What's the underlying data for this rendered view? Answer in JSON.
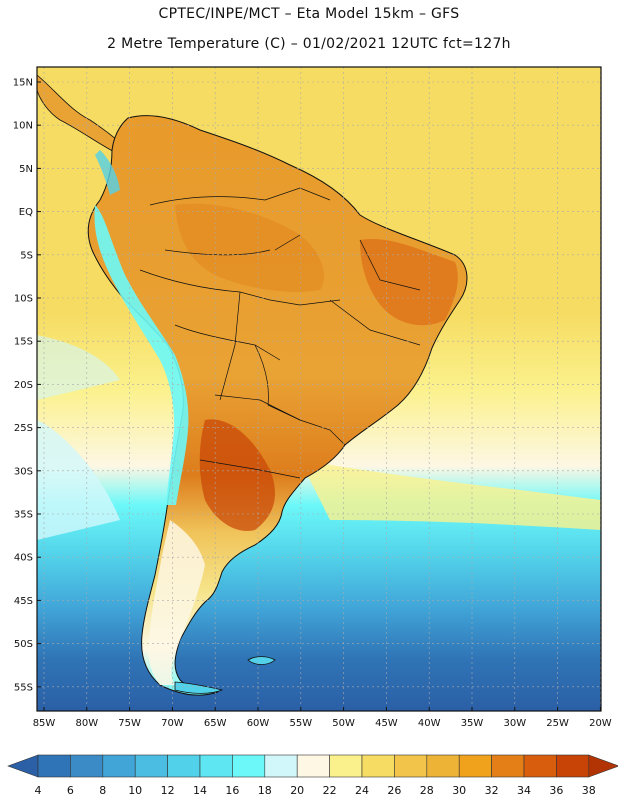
{
  "header": {
    "line1": "CPTEC/INPE/MCT –  Eta Model 15km – GFS",
    "line2": "2 Metre Temperature (C) – 01/02/2021 12UTC fct=127h"
  },
  "map": {
    "lat_labels": [
      "15N",
      "10N",
      "5N",
      "EQ",
      "5S",
      "10S",
      "15S",
      "20S",
      "25S",
      "30S",
      "35S",
      "40S",
      "45S",
      "50S",
      "55S"
    ],
    "lon_labels": [
      "85W",
      "80W",
      "75W",
      "70W",
      "65W",
      "60W",
      "55W",
      "50W",
      "45W",
      "40W",
      "35W",
      "30W",
      "25W",
      "20W"
    ]
  },
  "colorbar": {
    "labels": [
      "4",
      "6",
      "8",
      "10",
      "12",
      "14",
      "16",
      "18",
      "20",
      "22",
      "24",
      "26",
      "28",
      "30",
      "32",
      "34",
      "36",
      "38"
    ],
    "colors": [
      "#2b5fa6",
      "#2f74b6",
      "#3b8cc6",
      "#41a5d8",
      "#4bbde2",
      "#52d2ea",
      "#5ee6f2",
      "#6cf8f8",
      "#d2f7fb",
      "#fdf7e4",
      "#fbf18c",
      "#f6dc62",
      "#f2c54a",
      "#ecb337",
      "#f0a21d",
      "#e47f18",
      "#d85e0e",
      "#c74406",
      "#b23404"
    ]
  }
}
